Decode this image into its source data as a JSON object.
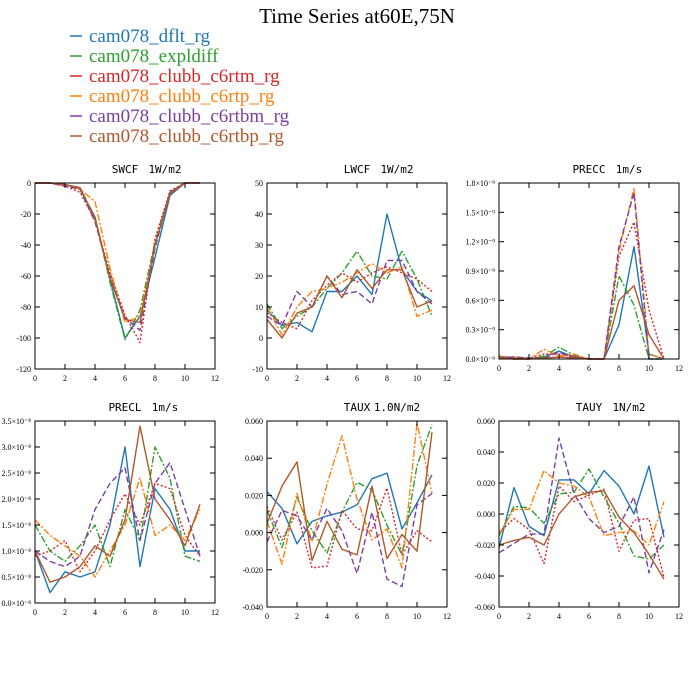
{
  "title": "Time Series at60E,75N",
  "legend": [
    {
      "name": "cam078_dflt_rg",
      "color": "#1f77b4",
      "dash": "solid"
    },
    {
      "name": "cam078_expldiff",
      "color": "#2ca02c",
      "dash": "dashdot"
    },
    {
      "name": "cam078_clubb_c6rtm_rg",
      "color": "#d62728",
      "dash": "dotted"
    },
    {
      "name": "cam078_clubb_c6rtp_rg",
      "color": "#ff7f0e",
      "dash": "dashdot"
    },
    {
      "name": "cam078_clubb_c6rtbm_rg",
      "color": "#7b3fa0",
      "dash": "dashed"
    },
    {
      "name": "cam078_clubb_c6rtbp_rg",
      "color": "#b0582a",
      "dash": "solid"
    }
  ],
  "chart_data": [
    {
      "type": "line",
      "title": "SWCF",
      "units": "1W/m2",
      "x": [
        0,
        1,
        2,
        3,
        4,
        5,
        6,
        7,
        8,
        9,
        10,
        11
      ],
      "xlim": [
        0,
        12
      ],
      "ylim": [
        -120,
        0
      ],
      "yticks": [
        0,
        -20,
        -40,
        -60,
        -80,
        -100,
        -120
      ],
      "ytick_labels": [
        "0",
        "-20",
        "-40",
        "-60",
        "-80",
        "-100",
        "-120"
      ],
      "xticks": [
        0,
        2,
        4,
        6,
        8,
        10,
        12
      ],
      "series": [
        {
          "values": [
            0,
            0,
            -1,
            -4,
            -22,
            -62,
            -100,
            -86,
            -48,
            -8,
            0,
            0
          ]
        },
        {
          "values": [
            0,
            0,
            -1,
            -3,
            -22,
            -64,
            -101,
            -82,
            -38,
            -6,
            0,
            0
          ]
        },
        {
          "values": [
            0,
            0,
            -2,
            -6,
            -24,
            -58,
            -85,
            -103,
            -36,
            -5,
            0,
            0
          ]
        },
        {
          "values": [
            0,
            0,
            -1,
            -4,
            -12,
            -55,
            -90,
            -86,
            -40,
            -7,
            0,
            0
          ]
        },
        {
          "values": [
            0,
            0,
            -2,
            -4,
            -25,
            -60,
            -87,
            -95,
            -42,
            -6,
            0,
            0
          ]
        },
        {
          "values": [
            0,
            0,
            -1,
            -3,
            -23,
            -61,
            -88,
            -90,
            -40,
            -7,
            0,
            0
          ]
        }
      ]
    },
    {
      "type": "line",
      "title": "LWCF",
      "units": "1W/m2",
      "x": [
        0,
        1,
        2,
        3,
        4,
        5,
        6,
        7,
        8,
        9,
        10,
        11
      ],
      "xlim": [
        0,
        12
      ],
      "ylim": [
        -10,
        50
      ],
      "yticks": [
        -10,
        0,
        10,
        20,
        30,
        40,
        50
      ],
      "ytick_labels": [
        "-10",
        "0",
        "10",
        "20",
        "30",
        "40",
        "50"
      ],
      "xticks": [
        0,
        2,
        4,
        6,
        8,
        10,
        12
      ],
      "series": [
        {
          "values": [
            9,
            4,
            5,
            2,
            15,
            15,
            20,
            14,
            40,
            22,
            15,
            12
          ]
        },
        {
          "values": [
            11,
            3,
            7,
            10,
            16,
            21,
            28,
            20,
            19,
            28,
            19,
            7
          ]
        },
        {
          "values": [
            8,
            5,
            3,
            12,
            17,
            21,
            18,
            21,
            23,
            21,
            19,
            15
          ]
        },
        {
          "values": [
            10,
            1,
            10,
            15,
            16,
            18,
            21,
            24,
            21,
            23,
            7,
            9
          ]
        },
        {
          "values": [
            7,
            4,
            15,
            10,
            20,
            14,
            15,
            11,
            25,
            25,
            15,
            11
          ]
        },
        {
          "values": [
            6,
            0,
            8,
            10,
            20,
            13,
            22,
            16,
            22,
            22,
            10,
            12
          ]
        }
      ]
    },
    {
      "type": "line",
      "title": "PRECC",
      "units": "1m/s",
      "x": [
        0,
        1,
        2,
        3,
        4,
        5,
        6,
        7,
        8,
        9,
        10,
        11
      ],
      "xlim": [
        0,
        12
      ],
      "ylim": [
        0,
        1.8e-09
      ],
      "yticks": [
        0,
        3e-10,
        6e-10,
        9e-10,
        1.2e-09,
        1.5e-09,
        1.8e-09
      ],
      "ytick_labels": [
        "0.0×10⁻⁹",
        "0.3×10⁻⁹",
        "0.6×10⁻⁹",
        "0.9×10⁻⁹",
        "1.2×10⁻⁹",
        "1.5×10⁻⁹",
        "1.8×10⁻⁹"
      ],
      "xticks": [
        0,
        2,
        4,
        6,
        8,
        10,
        12
      ],
      "series": [
        {
          "values": [
            3e-11,
            1e-11,
            0,
            2e-11,
            8e-11,
            2e-11,
            0,
            0,
            3.5e-10,
            1.15e-09,
            5e-11,
            0
          ]
        },
        {
          "values": [
            2e-11,
            0,
            0,
            3e-11,
            1.2e-10,
            4e-11,
            0,
            0,
            8.5e-10,
            5.5e-10,
            0,
            0
          ]
        },
        {
          "values": [
            2e-11,
            1e-11,
            1e-11,
            5e-11,
            5e-11,
            3e-11,
            0,
            0,
            1.05e-09,
            1.4e-09,
            5e-10,
            0
          ]
        },
        {
          "values": [
            2e-11,
            2e-11,
            0,
            1e-10,
            3e-11,
            5e-11,
            0,
            0,
            1.1e-09,
            1.75e-09,
            5e-11,
            0
          ]
        },
        {
          "values": [
            1e-11,
            2e-11,
            1e-11,
            1e-11,
            7e-11,
            1e-11,
            0,
            0,
            1.15e-09,
            1.7e-09,
            0,
            0
          ]
        },
        {
          "values": [
            1e-11,
            0,
            0,
            1e-11,
            2e-11,
            1e-11,
            0,
            0,
            6e-10,
            7.5e-10,
            2.5e-10,
            0
          ]
        }
      ]
    },
    {
      "type": "line",
      "title": "PRECL",
      "units": "1m/s",
      "x": [
        0,
        1,
        2,
        3,
        4,
        5,
        6,
        7,
        8,
        9,
        10,
        11
      ],
      "xlim": [
        0,
        12
      ],
      "ylim": [
        0,
        3.5e-08
      ],
      "yticks": [
        0,
        5e-09,
        1e-08,
        1.5e-08,
        2e-08,
        2.5e-08,
        3e-08,
        3.5e-08
      ],
      "ytick_labels": [
        "0.0×10⁻⁸",
        "0.5×10⁻⁸",
        "1.0×10⁻⁸",
        "1.5×10⁻⁸",
        "2.0×10⁻⁸",
        "2.5×10⁻⁸",
        "3.0×10⁻⁸",
        "3.5×10⁻⁸"
      ],
      "xticks": [
        0,
        2,
        4,
        6,
        8,
        10,
        12
      ],
      "series": [
        {
          "values": [
            1e-08,
            2e-09,
            6e-09,
            5e-09,
            6e-09,
            1.5e-08,
            3e-08,
            7e-09,
            2.2e-08,
            1.8e-08,
            1e-08,
            1e-08
          ]
        },
        {
          "values": [
            1.5e-08,
            1e-08,
            8e-09,
            1.1e-08,
            1.5e-08,
            7e-09,
            1.8e-08,
            1.2e-08,
            3e-08,
            2.4e-08,
            9e-09,
            8e-09
          ]
        },
        {
          "values": [
            9e-09,
            1e-08,
            1.2e-08,
            6e-09,
            1e-08,
            1.6e-08,
            2.1e-08,
            1.5e-08,
            2.3e-08,
            2.2e-08,
            1.3e-08,
            9e-09
          ]
        },
        {
          "values": [
            1.6e-08,
            1.3e-08,
            1.1e-08,
            9e-09,
            5e-09,
            1e-08,
            1.5e-08,
            2.4e-08,
            1.3e-08,
            1.5e-08,
            1.2e-08,
            1.8e-08
          ]
        },
        {
          "values": [
            1e-08,
            8e-09,
            7e-09,
            9e-09,
            1.8e-08,
            2.3e-08,
            2.6e-08,
            1.2e-08,
            2.3e-08,
            2.7e-08,
            1.8e-08,
            9e-09
          ]
        },
        {
          "values": [
            1e-08,
            4e-09,
            5e-09,
            7e-09,
            1.1e-08,
            9e-09,
            1.6e-08,
            3.4e-08,
            2e-08,
            1.6e-08,
            1.1e-08,
            1.9e-08
          ]
        }
      ]
    },
    {
      "type": "line",
      "title": "TAUX",
      "units": "1.0N/m2",
      "x": [
        0,
        1,
        2,
        3,
        4,
        5,
        6,
        7,
        8,
        9,
        10,
        11
      ],
      "xlim": [
        0,
        12
      ],
      "ylim": [
        -0.04,
        0.06
      ],
      "yticks": [
        -0.04,
        -0.02,
        0,
        0.02,
        0.04,
        0.06
      ],
      "ytick_labels": [
        "-0.040",
        "-0.020",
        "0.000",
        "0.020",
        "0.040",
        "0.060"
      ],
      "xticks": [
        0,
        2,
        4,
        6,
        8,
        10,
        12
      ],
      "series": [
        {
          "values": [
            0.022,
            0.013,
            -0.006,
            0.006,
            0.009,
            0.011,
            0.015,
            0.029,
            0.032,
            0.002,
            0.016,
            0.031
          ]
        },
        {
          "values": [
            0.012,
            -0.008,
            0.019,
            0.001,
            -0.011,
            0.011,
            0.027,
            0.023,
            0.004,
            -0.012,
            0.036,
            0.058
          ]
        },
        {
          "values": [
            0.014,
            -0.004,
            0.011,
            -0.019,
            -0.018,
            0.012,
            0.002,
            0.001,
            0.024,
            -0.012,
            0.001,
            -0.005
          ]
        },
        {
          "values": [
            0.006,
            -0.017,
            0.021,
            -0.005,
            0.026,
            0.052,
            0.018,
            -0.004,
            0.002,
            -0.019,
            0.059,
            0.021
          ]
        },
        {
          "values": [
            -0.005,
            0.012,
            0.009,
            -0.004,
            0.013,
            0.001,
            -0.022,
            0.011,
            -0.025,
            -0.029,
            0.015,
            0.021
          ]
        },
        {
          "values": [
            0.005,
            0.025,
            0.038,
            -0.015,
            0.006,
            -0.009,
            -0.012,
            0.025,
            -0.014,
            -0.001,
            -0.01,
            0.054
          ]
        }
      ]
    },
    {
      "type": "line",
      "title": "TAUY",
      "units": "1N/m2",
      "x": [
        0,
        1,
        2,
        3,
        4,
        5,
        6,
        7,
        8,
        9,
        10,
        11
      ],
      "xlim": [
        0,
        12
      ],
      "ylim": [
        -0.06,
        0.06
      ],
      "yticks": [
        -0.06,
        -0.04,
        -0.02,
        0,
        0.02,
        0.04,
        0.06
      ],
      "ytick_labels": [
        "-0.060",
        "-0.040",
        "-0.020",
        "0.000",
        "0.020",
        "0.040",
        "0.060"
      ],
      "xticks": [
        0,
        2,
        4,
        6,
        8,
        10,
        12
      ],
      "series": [
        {
          "values": [
            -0.022,
            0.017,
            -0.008,
            -0.014,
            0.022,
            0.022,
            0.013,
            0.028,
            0.018,
            0,
            0.031,
            -0.015
          ]
        },
        {
          "values": [
            -0.014,
            0.005,
            0.004,
            -0.006,
            0.013,
            0.014,
            0.029,
            0.011,
            -0.006,
            -0.027,
            -0.029,
            -0.02
          ]
        },
        {
          "values": [
            -0.012,
            -0.003,
            -0.01,
            -0.032,
            0.018,
            0.008,
            0.012,
            0.016,
            -0.024,
            -0.004,
            -0.003,
            -0.041
          ]
        },
        {
          "values": [
            -0.013,
            0.003,
            0.003,
            0.028,
            0.02,
            0.018,
            0.011,
            -0.014,
            -0.012,
            -0.011,
            -0.02,
            0.008
          ]
        },
        {
          "values": [
            -0.025,
            -0.019,
            -0.013,
            -0.013,
            0.049,
            0.013,
            -0.003,
            -0.012,
            -0.008,
            0.011,
            -0.038,
            -0.01
          ]
        },
        {
          "values": [
            -0.02,
            -0.017,
            -0.015,
            -0.02,
            0,
            0.011,
            0.014,
            0.015,
            -0.002,
            -0.012,
            -0.026,
            -0.042
          ]
        }
      ]
    }
  ]
}
